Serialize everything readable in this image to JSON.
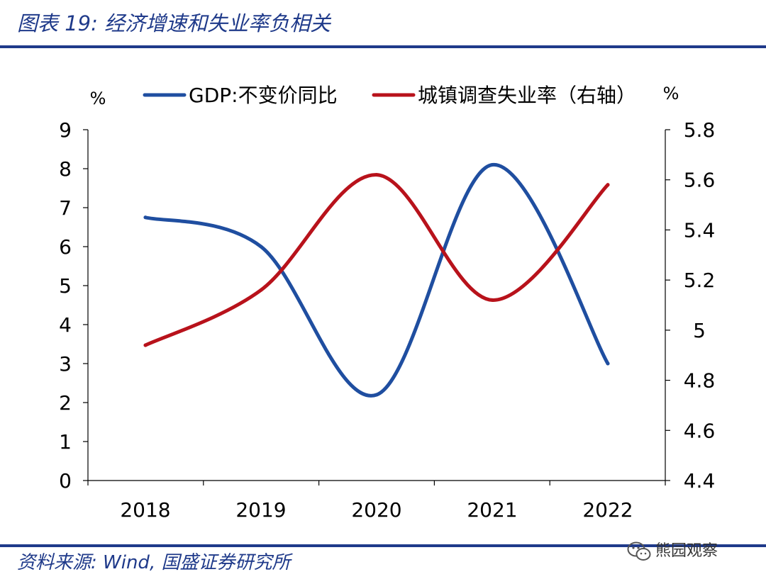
{
  "header": {
    "title": "图表 19:  经济增速和失业率负相关"
  },
  "footer": {
    "source": "资料来源:  Wind,  国盛证券研究所"
  },
  "watermark": {
    "text": "熊园观察",
    "icon": "wechat-icon"
  },
  "colors": {
    "brand": "#1f3a8a",
    "gdp": "#1f4ea0",
    "unemployment": "#b8121b"
  },
  "chart_data": {
    "type": "line",
    "title": "经济增速和失业率负相关",
    "categories": [
      "2018",
      "2019",
      "2020",
      "2021",
      "2022"
    ],
    "y_left": {
      "unit": "%",
      "ylim": [
        0,
        9
      ],
      "ticks": [
        "0",
        "1",
        "2",
        "3",
        "4",
        "5",
        "6",
        "7",
        "8",
        "9"
      ]
    },
    "y_right": {
      "unit": "%",
      "ylim": [
        4.4,
        5.8
      ],
      "ticks": [
        "4.4",
        "4.6",
        "4.8",
        "5",
        "5.2",
        "5.4",
        "5.6",
        "5.8"
      ]
    },
    "series": [
      {
        "name": "GDP:不变价同比",
        "axis": "left",
        "values": [
          6.75,
          6.0,
          2.2,
          8.1,
          3.0
        ]
      },
      {
        "name": "城镇调查失业率（右轴）",
        "axis": "right",
        "values": [
          4.94,
          5.16,
          5.62,
          5.12,
          5.58
        ]
      }
    ],
    "legend": "top-center",
    "grid": false
  }
}
